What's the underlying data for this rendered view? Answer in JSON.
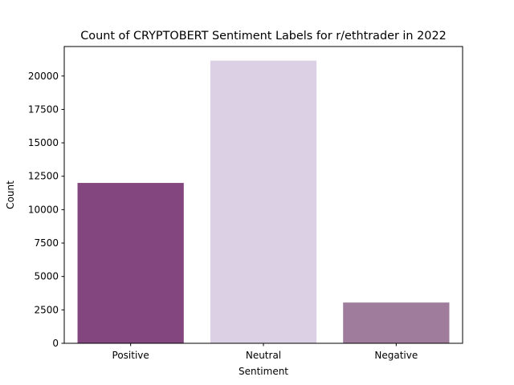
{
  "chart_data": {
    "type": "bar",
    "title": "Count of CRYPTOBERT Sentiment Labels for r/ethtrader in 2022",
    "xlabel": "Sentiment",
    "ylabel": "Count",
    "categories": [
      "Positive",
      "Neutral",
      "Negative"
    ],
    "values": [
      12000,
      21150,
      3050
    ],
    "bar_colors": [
      "#84467f",
      "#dcd0e5",
      "#a07c9c"
    ],
    "ylim": [
      0,
      22207
    ],
    "yticks": [
      0,
      2500,
      5000,
      7500,
      10000,
      12500,
      15000,
      17500,
      20000
    ],
    "ytick_labels": [
      "0",
      "2500",
      "5000",
      "7500",
      "10000",
      "12500",
      "15000",
      "17500",
      "20000"
    ],
    "grid": false,
    "legend": "none"
  }
}
